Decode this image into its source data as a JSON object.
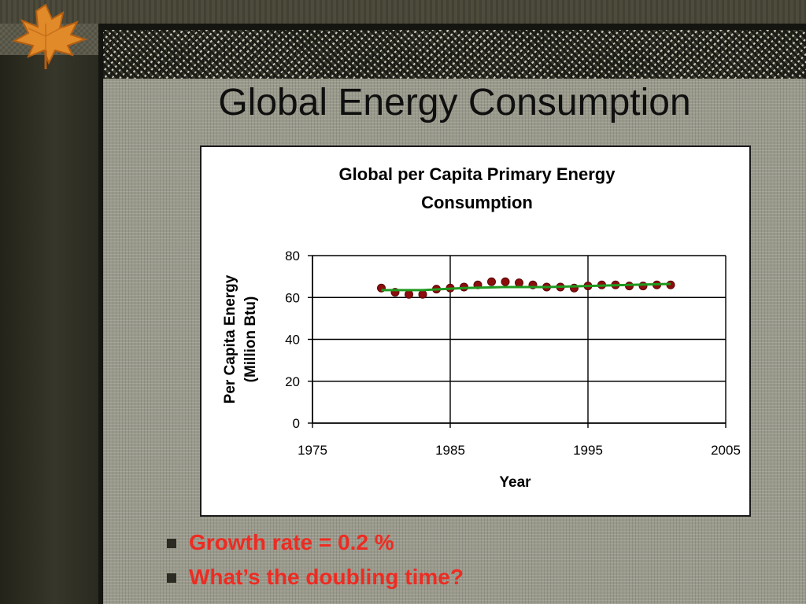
{
  "slide": {
    "title": "Global Energy Consumption",
    "bullets": [
      "Growth rate = 0.2 %",
      "What’s the doubling time?"
    ]
  },
  "icons": [
    "maple-leaf-icon",
    "square-bullet-icon"
  ],
  "colors": {
    "bullet_text": "#ee2b22",
    "data_point": "#8b0d0d",
    "trend_line": "#1f9a1f",
    "chart_background": "#ffffff"
  },
  "chart_data": {
    "type": "scatter",
    "title": "Global per Capita Primary Energy Consumption",
    "xlabel": "Year",
    "ylabel": "Per Capita Energy (Million Btu)",
    "xlim": [
      1975,
      2005
    ],
    "ylim": [
      0,
      80
    ],
    "xticks": [
      1975,
      1985,
      1995,
      2005
    ],
    "yticks": [
      0,
      20,
      40,
      60,
      80
    ],
    "grid": true,
    "legend": "none",
    "series": [
      {
        "type": "scatter",
        "x": [
          1980,
          1981,
          1982,
          1983,
          1984,
          1985,
          1986,
          1987,
          1988,
          1989,
          1990,
          1991,
          1992,
          1993,
          1994,
          1995,
          1996,
          1997,
          1998,
          1999,
          2000,
          2001
        ],
        "y": [
          64.5,
          62.5,
          61.5,
          61.5,
          64,
          64.5,
          65,
          66,
          67.5,
          67.5,
          67,
          66,
          65,
          65,
          64.5,
          65.5,
          66,
          66,
          65.5,
          65.5,
          66,
          66
        ]
      },
      {
        "type": "line",
        "x": [
          1980,
          1983,
          1986,
          1989,
          1992,
          1995,
          1998,
          2001
        ],
        "y": [
          63.5,
          63.5,
          64.5,
          65,
          65,
          65.5,
          66,
          66.5
        ]
      }
    ]
  }
}
